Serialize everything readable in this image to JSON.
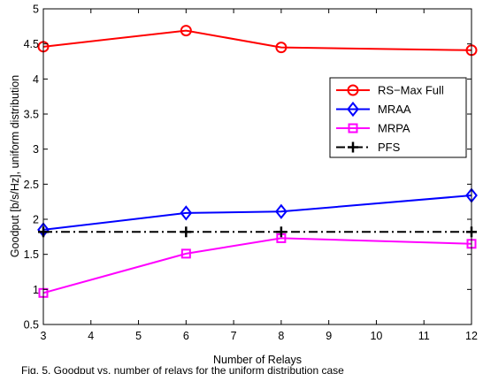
{
  "chart_data": {
    "type": "line",
    "title": "",
    "xlabel": "Number of Relays",
    "ylabel": "Goodput [b/s/Hz], uniform distribution",
    "xlim": [
      3,
      12
    ],
    "ylim": [
      0.5,
      5
    ],
    "xticks": [
      3,
      4,
      5,
      6,
      7,
      8,
      9,
      10,
      11,
      12
    ],
    "yticks": [
      0.5,
      1,
      1.5,
      2,
      2.5,
      3,
      3.5,
      4,
      4.5,
      5
    ],
    "ytick_labels": [
      "0.5",
      "1",
      "1.5",
      "2",
      "2.5",
      "3",
      "3.5",
      "4",
      "4.5",
      "5"
    ],
    "grid": false,
    "legend_position": "right",
    "series": [
      {
        "name": "RS−Max Full",
        "color": "#ff0000",
        "marker": "circle",
        "line_style": "solid",
        "x": [
          3,
          6,
          8,
          12
        ],
        "values": [
          4.46,
          4.69,
          4.45,
          4.41
        ]
      },
      {
        "name": "MRAA",
        "color": "#0000ff",
        "marker": "diamond",
        "line_style": "solid",
        "x": [
          3,
          6,
          8,
          12
        ],
        "values": [
          1.85,
          2.09,
          2.11,
          2.34
        ]
      },
      {
        "name": "MRPA",
        "color": "#ff00ff",
        "marker": "square",
        "line_style": "solid",
        "x": [
          3,
          6,
          8,
          12
        ],
        "values": [
          0.95,
          1.51,
          1.73,
          1.65
        ]
      },
      {
        "name": "PFS",
        "color": "#000000",
        "marker": "plus",
        "line_style": "dash-dot",
        "x": [
          3,
          6,
          8,
          12
        ],
        "values": [
          1.82,
          1.82,
          1.82,
          1.82
        ]
      }
    ]
  },
  "caption_fragment": "Fig. 5.  Goodput vs. number of relays for the uniform distribution case"
}
